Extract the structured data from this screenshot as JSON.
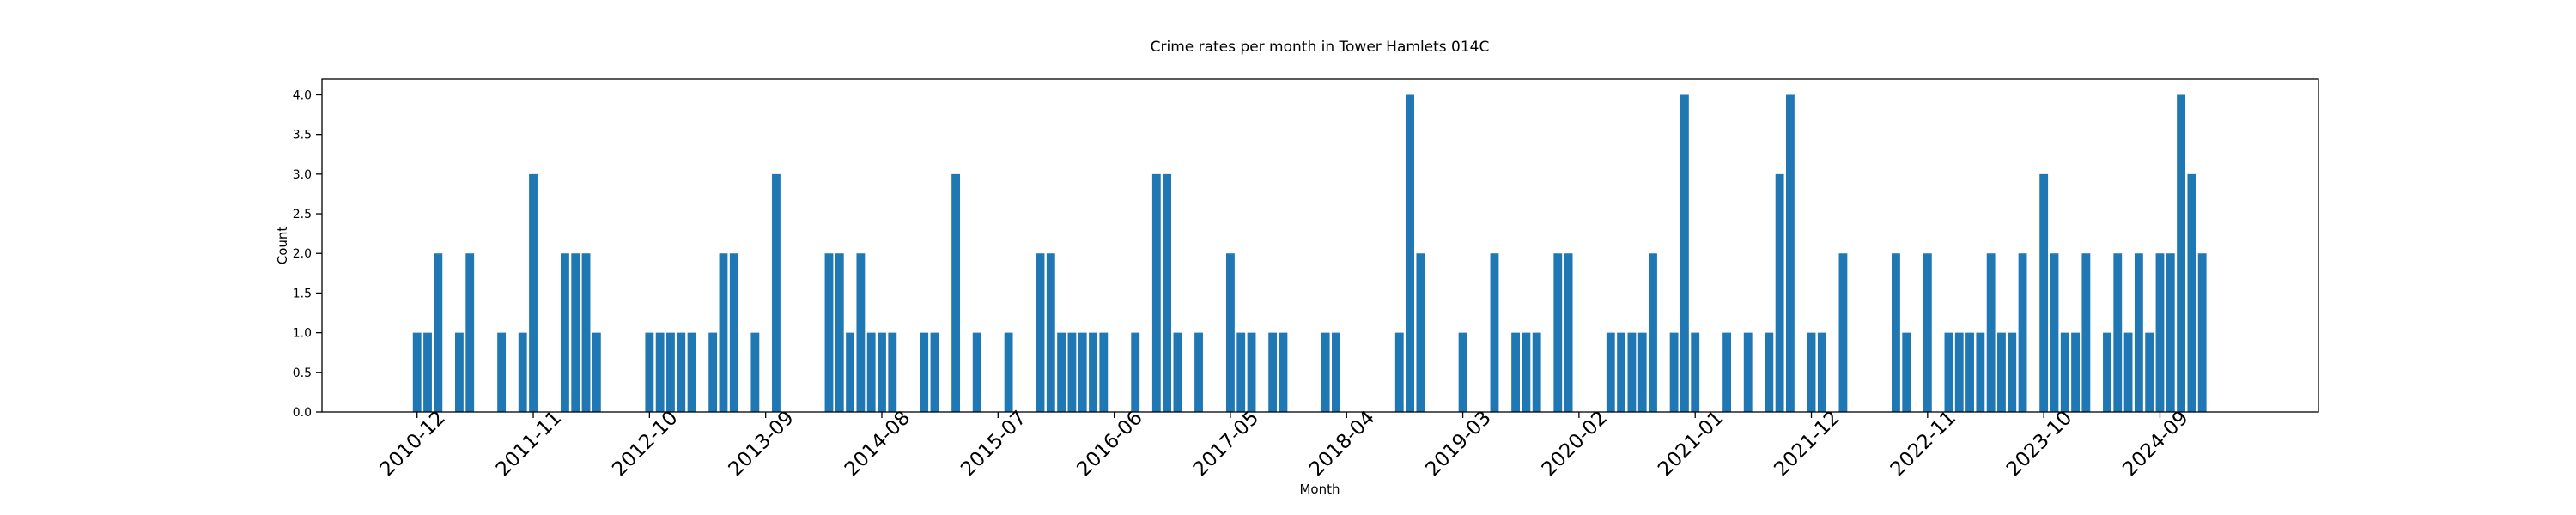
{
  "chart_data": {
    "type": "bar",
    "title": "Crime rates per month in Tower Hamlets 014C",
    "x_label": "Month",
    "y_label": "Count",
    "color": "#1f77b4",
    "x": [
      "2010-12",
      "2011-01",
      "2011-02",
      "2011-04",
      "2011-05",
      "2011-08",
      "2011-10",
      "2011-11",
      "2012-02",
      "2012-03",
      "2012-04",
      "2012-05",
      "2012-10",
      "2012-11",
      "2012-12",
      "2013-01",
      "2013-02",
      "2013-04",
      "2013-05",
      "2013-06",
      "2013-08",
      "2013-10",
      "2014-03",
      "2014-04",
      "2014-05",
      "2014-06",
      "2014-07",
      "2014-08",
      "2014-09",
      "2014-12",
      "2015-01",
      "2015-03",
      "2015-05",
      "2015-08",
      "2015-11",
      "2015-12",
      "2016-01",
      "2016-02",
      "2016-03",
      "2016-04",
      "2016-05",
      "2016-08",
      "2016-10",
      "2016-11",
      "2016-12",
      "2017-02",
      "2017-05",
      "2017-06",
      "2017-07",
      "2017-09",
      "2017-10",
      "2018-02",
      "2018-03",
      "2018-09",
      "2018-10",
      "2018-11",
      "2019-03",
      "2019-06",
      "2019-08",
      "2019-09",
      "2019-10",
      "2019-12",
      "2020-01",
      "2020-05",
      "2020-06",
      "2020-07",
      "2020-08",
      "2020-09",
      "2020-11",
      "2020-12",
      "2021-01",
      "2021-04",
      "2021-06",
      "2021-08",
      "2021-09",
      "2021-10",
      "2021-12",
      "2022-01",
      "2022-03",
      "2022-08",
      "2022-09",
      "2022-11",
      "2023-01",
      "2023-02",
      "2023-03",
      "2023-04",
      "2023-05",
      "2023-06",
      "2023-07",
      "2023-08",
      "2023-10",
      "2023-11",
      "2023-12",
      "2024-01",
      "2024-02",
      "2024-04",
      "2024-05",
      "2024-06",
      "2024-07",
      "2024-08",
      "2024-09",
      "2024-10",
      "2024-11",
      "2024-12",
      "2025-01"
    ],
    "values": [
      1,
      1,
      2,
      1,
      2,
      1,
      1,
      3,
      2,
      2,
      2,
      1,
      1,
      1,
      1,
      1,
      1,
      1,
      2,
      2,
      1,
      3,
      2,
      2,
      1,
      2,
      1,
      1,
      1,
      1,
      1,
      3,
      1,
      1,
      2,
      2,
      1,
      1,
      1,
      1,
      1,
      1,
      3,
      3,
      1,
      1,
      2,
      1,
      1,
      1,
      1,
      1,
      1,
      1,
      4,
      2,
      1,
      2,
      1,
      1,
      1,
      2,
      2,
      1,
      1,
      1,
      1,
      2,
      1,
      4,
      1,
      1,
      1,
      1,
      3,
      4,
      1,
      1,
      2,
      2,
      1,
      2,
      1,
      1,
      1,
      1,
      2,
      1,
      1,
      2,
      3,
      2,
      1,
      1,
      2,
      1,
      2,
      1,
      2,
      1,
      2,
      2,
      4,
      3,
      2
    ],
    "xlim": [
      "2010-03",
      "2025-12"
    ],
    "xticks": [
      "2010-12",
      "2011-11",
      "2012-10",
      "2013-09",
      "2014-08",
      "2015-07",
      "2016-06",
      "2017-05",
      "2018-04",
      "2019-03",
      "2020-02",
      "2021-01",
      "2021-12",
      "2022-11",
      "2023-10",
      "2024-09"
    ],
    "ylim": [
      0,
      4.2
    ],
    "yticks": [
      {
        "value": 0,
        "label": "0.0"
      },
      {
        "value": 0.5,
        "label": "0.5"
      },
      {
        "value": 1,
        "label": "1.0"
      },
      {
        "value": 1.5,
        "label": "1.5"
      },
      {
        "value": 2,
        "label": "2.0"
      },
      {
        "value": 2.5,
        "label": "2.5"
      },
      {
        "value": 3,
        "label": "3.0"
      },
      {
        "value": 3.5,
        "label": "3.5"
      },
      {
        "value": 4,
        "label": "4.0"
      }
    ]
  }
}
